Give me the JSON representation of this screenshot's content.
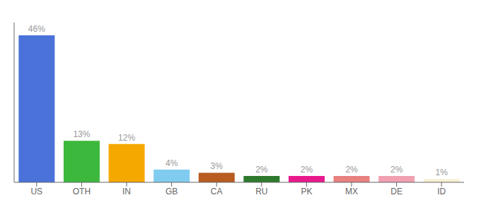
{
  "chart_data": {
    "type": "bar",
    "categories": [
      "US",
      "OTH",
      "IN",
      "GB",
      "CA",
      "RU",
      "PK",
      "MX",
      "DE",
      "ID"
    ],
    "values": [
      46,
      13,
      12,
      4,
      3,
      2,
      2,
      2,
      2,
      1
    ],
    "value_labels": [
      "46%",
      "13%",
      "12%",
      "4%",
      "3%",
      "2%",
      "2%",
      "2%",
      "2%",
      "1%"
    ],
    "colors": [
      "#4a72d9",
      "#3cb83c",
      "#f5a800",
      "#80ccf0",
      "#b85c20",
      "#2d7a2d",
      "#e8198c",
      "#e88080",
      "#f0a0b0",
      "#f5f0d0"
    ],
    "ylim": [
      0,
      50
    ],
    "data_labels": true,
    "tick_labels": "x"
  }
}
